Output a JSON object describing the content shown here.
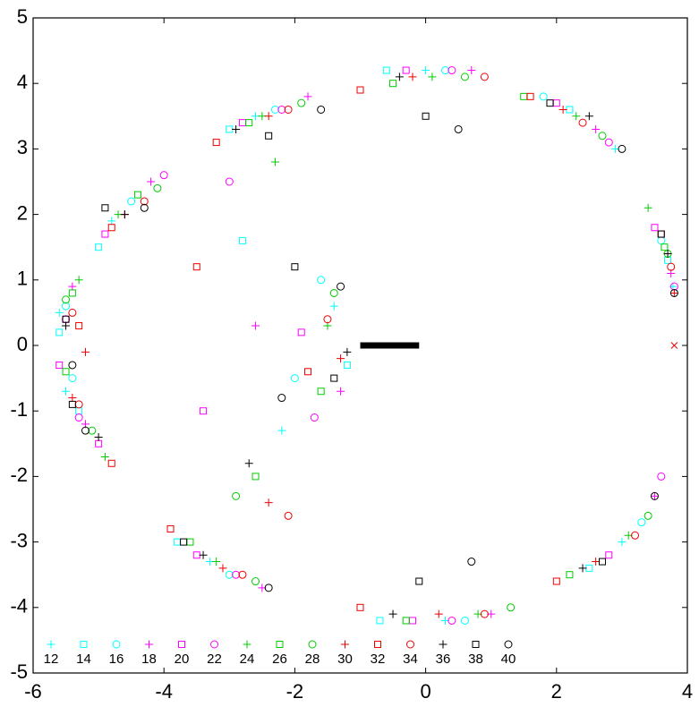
{
  "chart_data": {
    "type": "scatter",
    "xlim": [
      -6,
      4
    ],
    "ylim": [
      -5,
      5
    ],
    "xticks": [
      -6,
      -4,
      -2,
      0,
      2,
      4
    ],
    "yticks": [
      -5,
      -4,
      -3,
      -2,
      -1,
      0,
      1,
      2,
      3,
      4,
      5
    ],
    "grid": false,
    "legend": "lower left",
    "series": [
      {
        "name": "12",
        "color": "#00ffff",
        "marker": "plus",
        "x": [
          3.78,
          2.9,
          0.0,
          -2.6,
          -4.8,
          -5.6,
          -5.5,
          -3.3,
          0.3,
          3.0,
          -1.4,
          -2.2
        ],
        "y": [
          0.9,
          3.0,
          4.2,
          3.5,
          1.9,
          0.5,
          -0.7,
          -3.3,
          -4.2,
          -3.0,
          0.6,
          -1.3
        ]
      },
      {
        "name": "14",
        "color": "#00ffff",
        "marker": "square",
        "x": [
          3.7,
          2.2,
          -0.6,
          -3.0,
          -5.0,
          -5.6,
          -5.3,
          -3.8,
          -0.7,
          2.5,
          -1.2,
          -2.8
        ],
        "y": [
          1.3,
          3.6,
          4.2,
          3.3,
          1.5,
          0.2,
          -1.0,
          -3.0,
          -4.2,
          -3.4,
          -0.3,
          1.6
        ]
      },
      {
        "name": "16",
        "color": "#00ffff",
        "marker": "circle",
        "x": [
          3.6,
          1.8,
          0.3,
          -2.3,
          -4.5,
          -5.5,
          -5.4,
          -3.0,
          0.6,
          3.3,
          -1.6,
          -2.0
        ],
        "y": [
          1.6,
          3.8,
          4.2,
          3.6,
          2.2,
          0.6,
          -0.5,
          -3.5,
          -4.2,
          -2.7,
          1.0,
          -0.5
        ]
      },
      {
        "name": "18",
        "color": "#ff00ff",
        "marker": "plus",
        "x": [
          3.75,
          2.6,
          0.7,
          -1.8,
          -4.2,
          -5.4,
          -5.2,
          -2.5,
          1.0,
          3.5,
          -1.3,
          -2.6
        ],
        "y": [
          1.1,
          3.3,
          4.2,
          3.8,
          2.5,
          0.9,
          -1.2,
          -3.7,
          -4.1,
          -2.3,
          -0.7,
          0.3
        ]
      },
      {
        "name": "20",
        "color": "#ff00ff",
        "marker": "square",
        "x": [
          3.5,
          2.0,
          -0.3,
          -2.8,
          -4.9,
          -5.6,
          -5.0,
          -3.5,
          -0.2,
          2.8,
          -1.9,
          -3.4
        ],
        "y": [
          1.8,
          3.7,
          4.2,
          3.4,
          1.7,
          -0.3,
          -1.5,
          -3.2,
          -4.2,
          -3.2,
          0.2,
          -1.0
        ]
      },
      {
        "name": "22",
        "color": "#ff00ff",
        "marker": "circle",
        "x": [
          3.8,
          2.8,
          0.4,
          -2.2,
          -4.0,
          -5.5,
          -5.3,
          -2.9,
          0.4,
          3.6,
          -1.7,
          -3.0
        ],
        "y": [
          0.9,
          3.1,
          4.2,
          3.6,
          2.6,
          0.4,
          -1.1,
          -3.5,
          -4.2,
          -2.0,
          -1.1,
          2.5
        ]
      },
      {
        "name": "24",
        "color": "#00cc00",
        "marker": "plus",
        "x": [
          3.4,
          2.3,
          0.1,
          -2.5,
          -4.7,
          -5.3,
          -4.9,
          -3.2,
          0.8,
          3.1,
          -1.5,
          -2.3
        ],
        "y": [
          2.1,
          3.5,
          4.1,
          3.5,
          2.0,
          1.0,
          -1.7,
          -3.3,
          -4.1,
          -2.9,
          0.3,
          2.8
        ]
      },
      {
        "name": "26",
        "color": "#00cc00",
        "marker": "square",
        "x": [
          3.65,
          1.5,
          -0.5,
          -2.7,
          -4.4,
          -5.4,
          -5.5,
          -3.6,
          -0.3,
          2.2,
          -1.6,
          -2.6
        ],
        "y": [
          1.5,
          3.8,
          4.0,
          3.4,
          2.3,
          0.8,
          -0.4,
          -3.0,
          -4.2,
          -3.5,
          -0.7,
          -2.0
        ]
      },
      {
        "name": "28",
        "color": "#00cc00",
        "marker": "circle",
        "x": [
          3.7,
          2.7,
          0.6,
          -1.9,
          -4.1,
          -5.5,
          -5.1,
          -2.6,
          1.3,
          3.4,
          -1.4,
          -2.9
        ],
        "y": [
          1.4,
          3.2,
          4.1,
          3.7,
          2.4,
          0.7,
          -1.3,
          -3.6,
          -4.0,
          -2.6,
          0.8,
          -2.3
        ]
      },
      {
        "name": "30",
        "color": "#ee0000",
        "marker": "plus",
        "x": [
          3.8,
          2.1,
          -0.2,
          -2.4,
          -4.6,
          -5.2,
          -5.4,
          -3.1,
          0.2,
          2.6,
          -1.3,
          -2.4
        ],
        "y": [
          0.8,
          3.6,
          4.1,
          3.5,
          2.0,
          -0.1,
          -0.8,
          -3.4,
          -4.1,
          -3.3,
          -0.2,
          -2.4
        ]
      },
      {
        "name": "32",
        "color": "#ee0000",
        "marker": "square",
        "x": [
          3.6,
          1.6,
          -1.0,
          -3.2,
          -4.8,
          -5.3,
          -4.8,
          -3.9,
          -1.0,
          2.0,
          -1.8,
          -3.5
        ],
        "y": [
          1.7,
          3.8,
          3.9,
          3.1,
          1.8,
          0.3,
          -1.8,
          -2.8,
          -4.0,
          -3.6,
          -0.4,
          1.2
        ]
      },
      {
        "name": "34",
        "color": "#ee0000",
        "marker": "circle",
        "x": [
          3.75,
          2.4,
          0.9,
          -2.1,
          -4.3,
          -5.4,
          -5.3,
          -2.8,
          0.9,
          3.2,
          -1.5,
          -2.1
        ],
        "y": [
          1.2,
          3.4,
          4.1,
          3.6,
          2.2,
          0.5,
          -0.9,
          -3.5,
          -4.1,
          -2.9,
          0.4,
          -2.6
        ]
      },
      {
        "name": "36",
        "color": "#000000",
        "marker": "plus",
        "x": [
          3.7,
          2.5,
          -0.4,
          -2.9,
          -4.6,
          -5.5,
          -5.0,
          -3.4,
          -0.5,
          2.4,
          -1.2,
          -2.7
        ],
        "y": [
          1.4,
          3.5,
          4.1,
          3.3,
          2.0,
          0.3,
          -1.4,
          -3.2,
          -4.1,
          -3.4,
          -0.1,
          -1.8
        ]
      },
      {
        "name": "38",
        "color": "#000000",
        "marker": "square",
        "x": [
          3.6,
          1.9,
          0.0,
          -2.4,
          -4.9,
          -5.5,
          -5.4,
          -3.7,
          -0.1,
          2.7,
          -1.4,
          -2.0
        ],
        "y": [
          1.7,
          3.7,
          3.5,
          3.2,
          2.1,
          0.4,
          -0.9,
          -3.0,
          -3.6,
          -3.3,
          -0.5,
          1.2
        ]
      },
      {
        "name": "40",
        "color": "#000000",
        "marker": "circle",
        "x": [
          3.8,
          3.0,
          0.5,
          -1.6,
          -4.3,
          -5.4,
          -5.2,
          -2.4,
          0.7,
          3.5,
          -1.3,
          -2.2
        ],
        "y": [
          0.8,
          3.0,
          3.3,
          3.6,
          2.1,
          -0.3,
          -1.3,
          -3.7,
          -3.3,
          -2.3,
          0.9,
          -0.8
        ]
      }
    ],
    "line_segment": {
      "color": "#000000",
      "x": [
        -1.0,
        -0.1
      ],
      "y": [
        0,
        0
      ]
    },
    "cross_point": {
      "color": "#ee0000",
      "x": 3.8,
      "y": 0
    }
  }
}
